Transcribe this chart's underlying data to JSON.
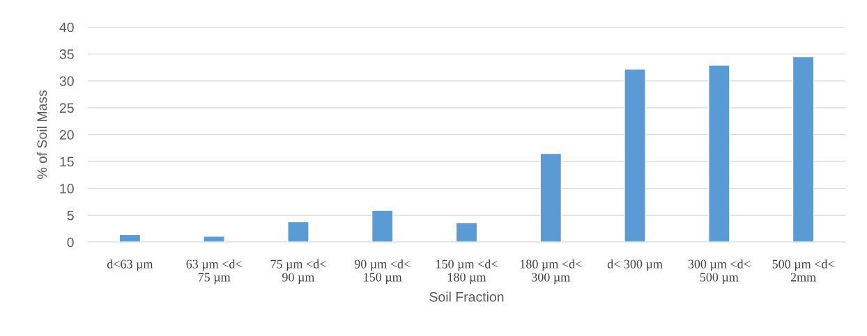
{
  "chart_data": {
    "type": "bar",
    "xlabel": "Soil Fraction",
    "ylabel": "% of Soil Mass",
    "categories": [
      "d<63 µm",
      "63 µm <d<\n75 µm",
      "75 µm <d<\n90 µm",
      "90 µm <d<\n150 µm",
      "150 µm <d<\n180 µm",
      "180 µm <d<\n300 µm",
      "d< 300 µm",
      "300 µm <d<\n500 µm",
      "500 µm <d<\n2mm"
    ],
    "values": [
      1.4,
      1.1,
      3.8,
      5.9,
      3.6,
      16.5,
      32.2,
      32.9,
      34.5
    ],
    "color": "#5b9bd5",
    "ylim": [
      0,
      40
    ],
    "yticks": [
      0,
      5,
      10,
      15,
      20,
      25,
      30,
      35,
      40
    ],
    "grid": "y",
    "legend": false
  }
}
